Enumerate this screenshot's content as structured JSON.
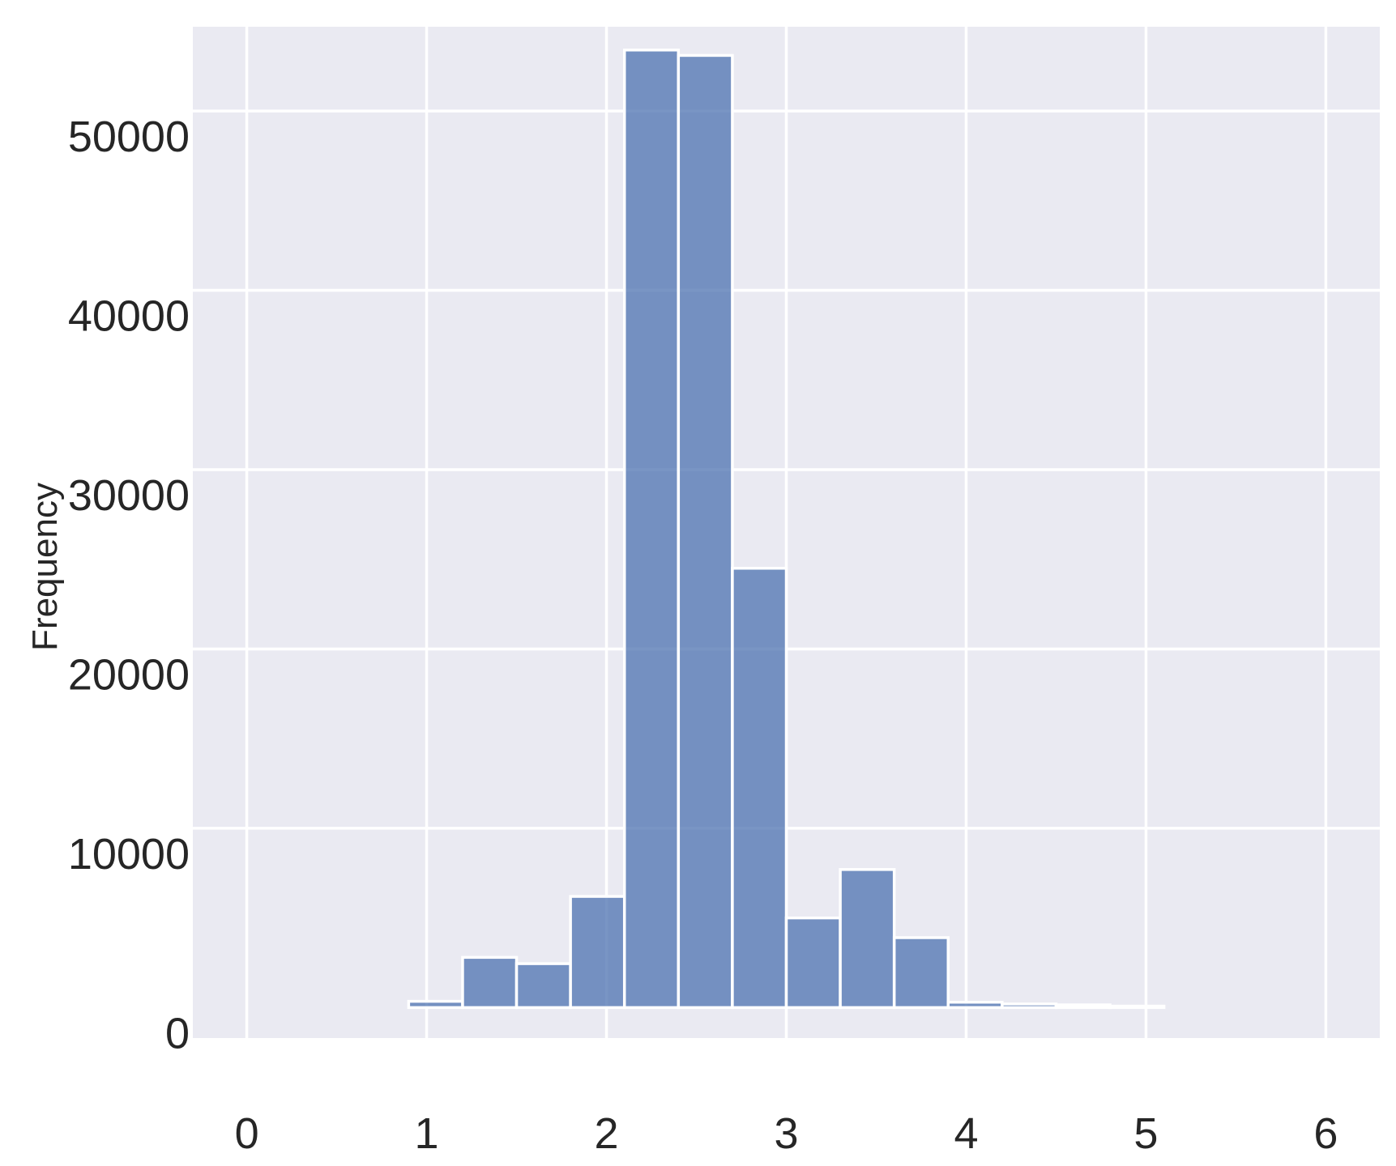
{
  "chart_data": {
    "type": "bar",
    "title": "",
    "xlabel": "",
    "ylabel": "Frequency",
    "xlim": [
      -0.3,
      6.3
    ],
    "ylim": [
      -1700,
      54700
    ],
    "x_ticks": [
      "0",
      "1",
      "2",
      "3",
      "4",
      "5",
      "6"
    ],
    "y_ticks": [
      "0",
      "10000",
      "20000",
      "30000",
      "40000",
      "50000"
    ],
    "grid": true,
    "bar_color": "#4c72b0",
    "background_color": "#eaeaf2",
    "bins": [
      {
        "start": 0.9,
        "end": 1.2,
        "value": 350
      },
      {
        "start": 1.2,
        "end": 1.5,
        "value": 2800
      },
      {
        "start": 1.5,
        "end": 1.8,
        "value": 2450
      },
      {
        "start": 1.8,
        "end": 2.1,
        "value": 6200
      },
      {
        "start": 2.1,
        "end": 2.4,
        "value": 53400
      },
      {
        "start": 2.4,
        "end": 2.7,
        "value": 53100
      },
      {
        "start": 2.7,
        "end": 3.0,
        "value": 24500
      },
      {
        "start": 3.0,
        "end": 3.3,
        "value": 5000
      },
      {
        "start": 3.3,
        "end": 3.6,
        "value": 7700
      },
      {
        "start": 3.6,
        "end": 3.9,
        "value": 3900
      },
      {
        "start": 3.9,
        "end": 4.2,
        "value": 300
      },
      {
        "start": 4.2,
        "end": 4.5,
        "value": 200
      },
      {
        "start": 4.5,
        "end": 4.8,
        "value": 150
      },
      {
        "start": 4.8,
        "end": 5.1,
        "value": 80
      }
    ]
  }
}
